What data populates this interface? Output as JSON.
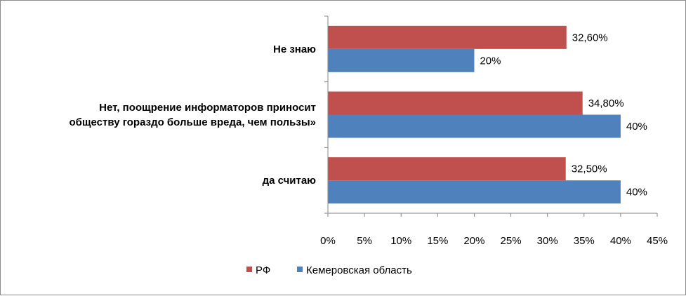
{
  "chart_data": {
    "type": "bar",
    "orientation": "horizontal",
    "categories": [
      [
        "Не знаю"
      ],
      [
        "Нет, поощрение информаторов приносит",
        "обществу гораздо больше вреда, чем пользы»"
      ],
      [
        "да считаю"
      ]
    ],
    "series": [
      {
        "name": "РФ",
        "color": "#c0504d",
        "values": [
          32.6,
          34.8,
          32.5
        ],
        "labels": [
          "32,60%",
          "34,80%",
          "32,50%"
        ]
      },
      {
        "name": "Кемеровская область",
        "color": "#4f81bd",
        "values": [
          20,
          40,
          40
        ],
        "labels": [
          "20%",
          "40%",
          "40%"
        ]
      }
    ],
    "xlim": [
      0,
      45
    ],
    "ticks": [
      0,
      5,
      10,
      15,
      20,
      25,
      30,
      35,
      40,
      45
    ],
    "tick_labels": [
      "0%",
      "5%",
      "10%",
      "15%",
      "20%",
      "25%",
      "30%",
      "35%",
      "40%",
      "45%"
    ],
    "grid": false,
    "legend_position": "bottom"
  }
}
